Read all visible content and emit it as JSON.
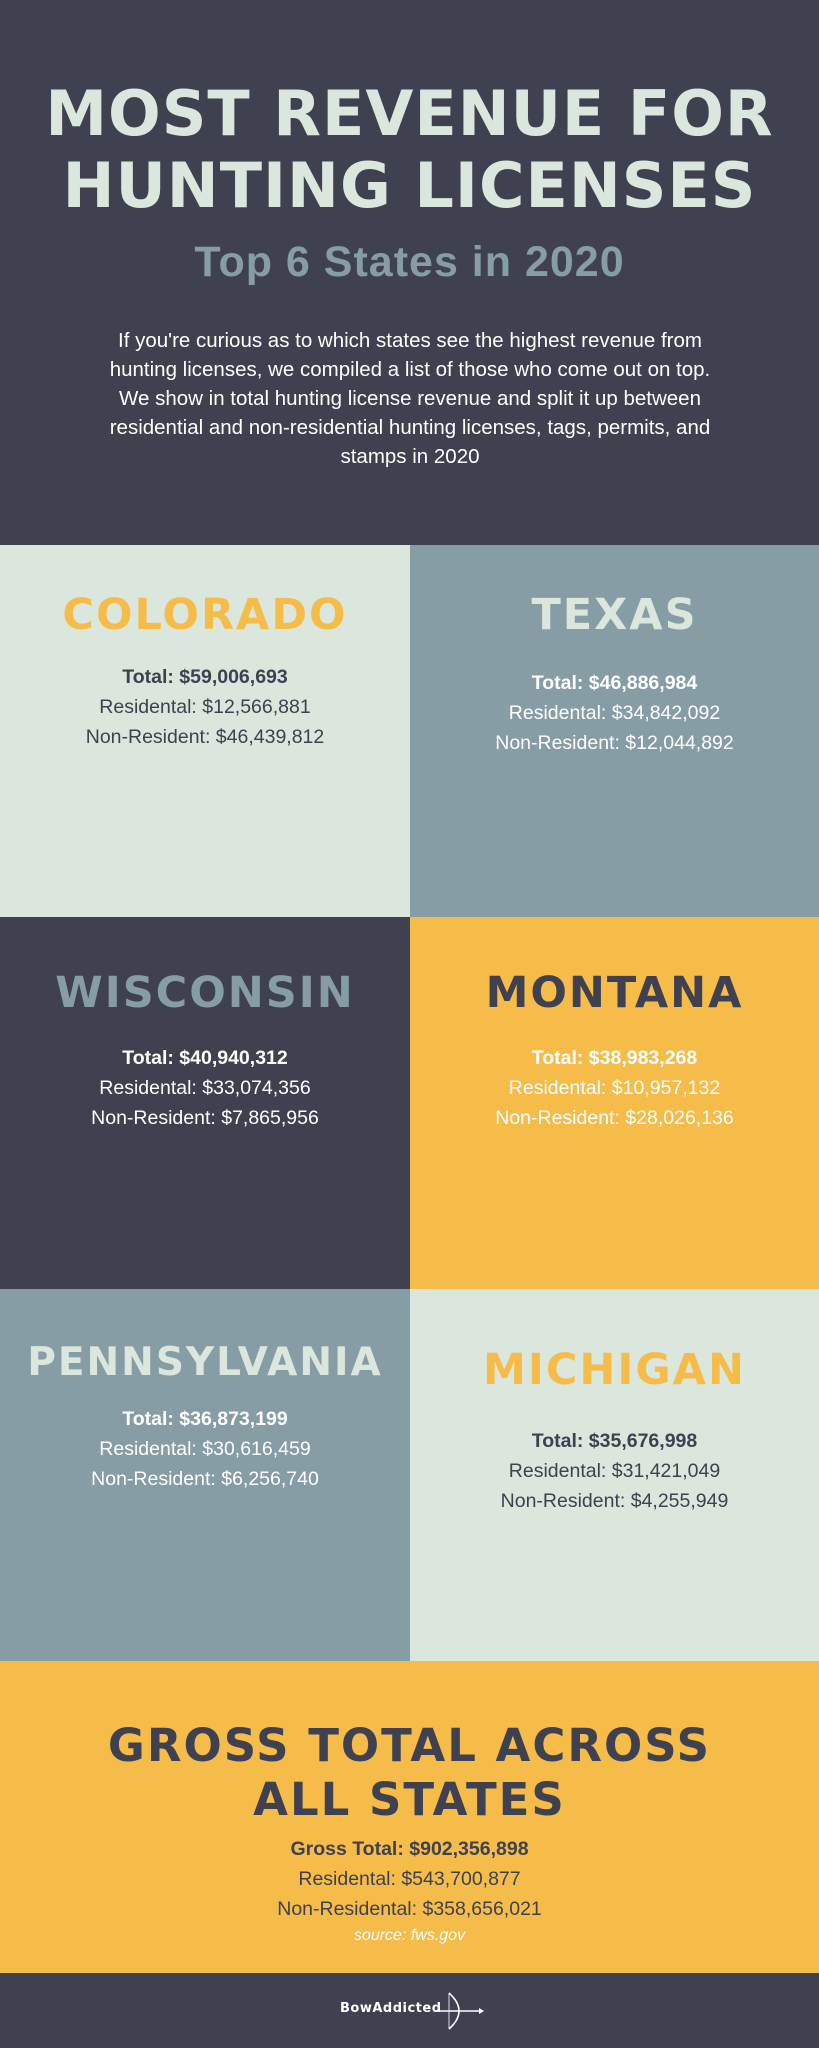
{
  "header": {
    "title_line1": "MOST REVENUE FOR",
    "title_line2": "HUNTING LICENSES",
    "subtitle": "Top 6 States in 2020",
    "intro": "If you're curious as to which states see the highest revenue from hunting licenses, we compiled a list of those who come out on top. We show in total hunting license revenue and split it up between residential and non-residential hunting licenses, tags, permits, and stamps in 2020"
  },
  "states": [
    {
      "name": "COLORADO",
      "total": "Total: $59,006,693",
      "residential": "Residental: $12,566,881",
      "non_resident": "Non-Resident: $46,439,812"
    },
    {
      "name": "TEXAS",
      "total": "Total: $46,886,984",
      "residential": "Residental: $34,842,092",
      "non_resident": "Non-Resident: $12,044,892"
    },
    {
      "name": "WISCONSIN",
      "total": "Total: $40,940,312",
      "residential": "Residental: $33,074,356",
      "non_resident": "Non-Resident: $7,865,956"
    },
    {
      "name": "MONTANA",
      "total": "Total: $38,983,268",
      "residential": "Residental: $10,957,132",
      "non_resident": "Non-Resident: $28,026,136"
    },
    {
      "name": "PENNSYLVANIA",
      "total": "Total: $36,873,199",
      "residential": "Residental: $30,616,459",
      "non_resident": "Non-Resident: $6,256,740"
    },
    {
      "name": "MICHIGAN",
      "total": "Total: $35,676,998",
      "residential": "Residental: $31,421,049",
      "non_resident": "Non-Resident: $4,255,949"
    }
  ],
  "gross": {
    "title_line1": "GROSS TOTAL ACROSS",
    "title_line2": "ALL STATES",
    "total": "Gross Total: $902,356,898",
    "residential": "Residental: $543,700,877",
    "non_residential": "Non-Residental: $358,656,021",
    "source": "source: fws.gov"
  },
  "footer": {
    "logo_text": "BowAddicted",
    "logo_icon": "bow-arrow-icon"
  },
  "colors": {
    "dark": "#3f4150",
    "mint": "#dbe6dd",
    "slate": "#869da6",
    "gold": "#f5bc4a",
    "white": "#ffffff"
  }
}
